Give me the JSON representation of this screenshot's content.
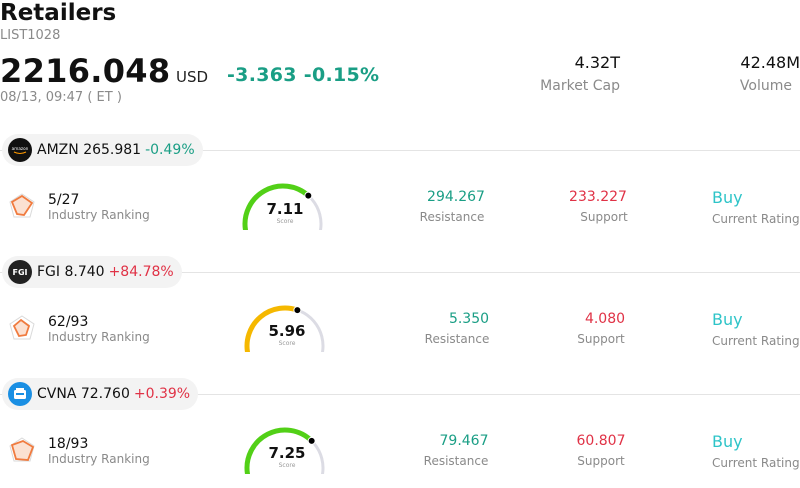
{
  "header": {
    "title": "Retailers",
    "code": "LIST1028",
    "price": "2216.048",
    "currency": "USD",
    "change": "-3.363",
    "change_pct": "-0.15%",
    "time": "08/13, 09:47 ( ET )",
    "market_cap_value": "4.32T",
    "market_cap_label": "Market Cap",
    "volume_value": "42.48M",
    "volume_label": "Volume"
  },
  "colors": {
    "positive": "#1a9e85",
    "negative": "#e03246",
    "rating": "#2ec4c8",
    "gauge_green": "#52d017",
    "gauge_yellow": "#f5b800",
    "gauge_track": "#dcdce4"
  },
  "stocks": [
    {
      "ticker": "AMZN",
      "price": "265.981",
      "change_pct": "-0.49%",
      "logo_icon": "amazon-logo",
      "rank": "5/27",
      "rank_label": "Industry Ranking",
      "score": "7.11",
      "score_fraction": 0.711,
      "score_label": "Score",
      "resistance": "294.267",
      "resistance_label": "Resistance",
      "support": "233.227",
      "support_label": "Support",
      "rating": "Buy",
      "rating_label": "Current Rating"
    },
    {
      "ticker": "FGI",
      "price": "8.740",
      "change_pct": "+84.78%",
      "logo_icon": "fgi-logo",
      "rank": "62/93",
      "rank_label": "Industry Ranking",
      "score": "5.96",
      "score_fraction": 0.596,
      "score_label": "Score",
      "resistance": "5.350",
      "resistance_label": "Resistance",
      "support": "4.080",
      "support_label": "Support",
      "rating": "Buy",
      "rating_label": "Current Rating"
    },
    {
      "ticker": "CVNA",
      "price": "72.760",
      "change_pct": "+0.39%",
      "logo_icon": "carvana-logo",
      "rank": "18/93",
      "rank_label": "Industry Ranking",
      "score": "7.25",
      "score_fraction": 0.725,
      "score_label": "Score",
      "resistance": "79.467",
      "resistance_label": "Resistance",
      "support": "60.807",
      "support_label": "Support",
      "rating": "Buy",
      "rating_label": "Current Rating"
    }
  ]
}
